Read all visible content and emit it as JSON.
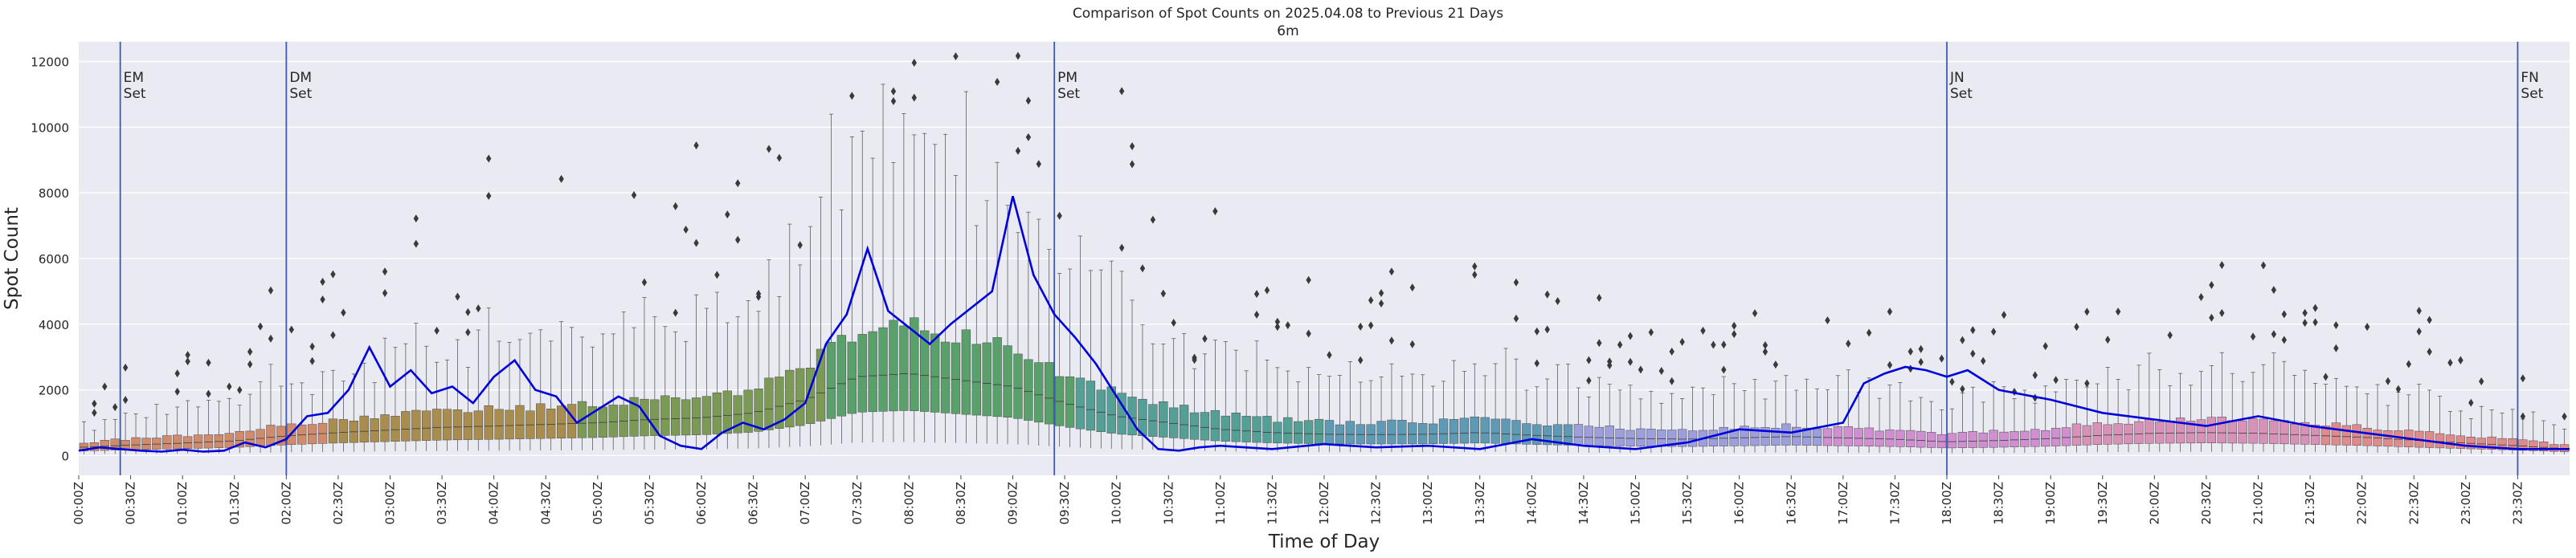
{
  "chart_data": {
    "type": "box",
    "title": "Comparison of Spot Counts on 2025.04.08 to Previous 21 Days",
    "subtitle": "6m",
    "xlabel": "Time of Day",
    "ylabel": "Spot Count",
    "ylim": [
      -600,
      12600
    ],
    "yticks": [
      0,
      2000,
      4000,
      6000,
      8000,
      10000,
      12000
    ],
    "grid": true,
    "bins_per_hour": 10,
    "xtick_labels": [
      "00:00Z",
      "00:30Z",
      "01:00Z",
      "01:30Z",
      "02:00Z",
      "02:30Z",
      "03:00Z",
      "03:30Z",
      "04:00Z",
      "04:30Z",
      "05:00Z",
      "05:30Z",
      "06:00Z",
      "06:30Z",
      "07:00Z",
      "07:30Z",
      "08:00Z",
      "08:30Z",
      "09:00Z",
      "09:30Z",
      "10:00Z",
      "10:30Z",
      "11:00Z",
      "11:30Z",
      "12:00Z",
      "12:30Z",
      "13:00Z",
      "13:30Z",
      "14:00Z",
      "14:30Z",
      "15:00Z",
      "15:30Z",
      "16:00Z",
      "16:30Z",
      "17:00Z",
      "17:30Z",
      "18:00Z",
      "18:30Z",
      "19:00Z",
      "19:30Z",
      "20:00Z",
      "20:30Z",
      "21:00Z",
      "21:30Z",
      "22:00Z",
      "22:30Z",
      "23:00Z",
      "23:30Z"
    ],
    "markers": [
      {
        "label": "EM Set",
        "time": "00:24Z"
      },
      {
        "label": "DM Set",
        "time": "02:00Z"
      },
      {
        "label": "PM Set",
        "time": "09:24Z"
      },
      {
        "label": "JN Set",
        "time": "18:00Z"
      },
      {
        "label": "FN Set",
        "time": "23:30Z"
      }
    ],
    "median_profile": {
      "hours": [
        0,
        0.5,
        1,
        1.5,
        2,
        2.5,
        3,
        3.5,
        4,
        4.5,
        5,
        5.5,
        6,
        6.5,
        7,
        7.5,
        8,
        8.5,
        9,
        9.5,
        10,
        10.5,
        11,
        11.5,
        12,
        12.5,
        13,
        13.5,
        14,
        14.5,
        15,
        15.5,
        16,
        16.5,
        17,
        17.5,
        18,
        18.5,
        19,
        19.5,
        20,
        20.5,
        21,
        21.5,
        22,
        22.5,
        23,
        23.5,
        24
      ],
      "values": [
        250,
        320,
        380,
        450,
        600,
        700,
        780,
        860,
        900,
        950,
        1000,
        1100,
        1150,
        1300,
        1700,
        2400,
        2500,
        2300,
        2100,
        1600,
        1200,
        1000,
        800,
        700,
        650,
        640,
        650,
        700,
        620,
        560,
        520,
        500,
        540,
        580,
        540,
        500,
        420,
        460,
        520,
        620,
        680,
        700,
        680,
        620,
        560,
        470,
        380,
        300,
        200
      ]
    },
    "current_day_series": {
      "name": "2025.04.08",
      "color": "#0000dd",
      "hours": [
        0,
        0.2,
        0.4,
        0.6,
        0.8,
        1.0,
        1.2,
        1.4,
        1.6,
        1.8,
        2.0,
        2.2,
        2.4,
        2.6,
        2.8,
        3.0,
        3.2,
        3.4,
        3.6,
        3.8,
        4.0,
        4.2,
        4.4,
        4.6,
        4.8,
        5.0,
        5.2,
        5.4,
        5.6,
        5.8,
        6.0,
        6.2,
        6.4,
        6.6,
        6.8,
        7.0,
        7.2,
        7.4,
        7.6,
        7.8,
        8.0,
        8.2,
        8.4,
        8.6,
        8.8,
        9.0,
        9.2,
        9.4,
        9.6,
        9.8,
        10.0,
        10.2,
        10.4,
        10.6,
        10.8,
        11.0,
        11.5,
        12.0,
        12.5,
        13.0,
        13.5,
        14.0,
        14.5,
        15.0,
        15.5,
        16.0,
        16.5,
        17.0,
        17.2,
        17.4,
        17.6,
        17.8,
        18.0,
        18.2,
        18.5,
        19.0,
        19.5,
        20.0,
        20.5,
        21.0,
        21.5,
        22.0,
        22.5,
        23.0,
        23.5,
        24.0
      ],
      "values": [
        150,
        250,
        200,
        150,
        120,
        180,
        120,
        150,
        400,
        250,
        500,
        1200,
        1300,
        2000,
        3300,
        2100,
        2600,
        1900,
        2100,
        1600,
        2400,
        2900,
        2000,
        1800,
        1000,
        1400,
        1800,
        1500,
        600,
        300,
        200,
        700,
        1000,
        800,
        1100,
        1600,
        3400,
        4300,
        6300,
        4400,
        3900,
        3400,
        4000,
        4500,
        5000,
        7900,
        5500,
        4300,
        3600,
        2800,
        1800,
        800,
        200,
        150,
        250,
        300,
        200,
        350,
        250,
        300,
        200,
        500,
        300,
        200,
        400,
        800,
        700,
        1000,
        2200,
        2500,
        2700,
        2600,
        2400,
        2600,
        2000,
        1700,
        1300,
        1100,
        900,
        1200,
        900,
        700,
        500,
        300,
        200,
        200
      ]
    },
    "box_colors": [
      "#d08b6d",
      "#a98d4e",
      "#7a9a55",
      "#5aa06a",
      "#55a096",
      "#5f9ab5",
      "#9c9fdb",
      "#cf8fd0",
      "#d892b8",
      "#e08b8b"
    ]
  }
}
